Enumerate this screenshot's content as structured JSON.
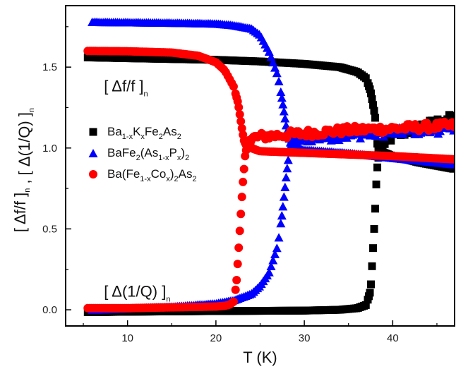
{
  "chart_data": {
    "type": "scatter",
    "title": "",
    "xlabel": "T (K)",
    "ylabel": "[ Δf/f ]n , [ Δ(1/Q) ]n",
    "xlim": [
      3,
      47
    ],
    "ylim": [
      -0.1,
      1.88
    ],
    "x_ticks": [
      10,
      20,
      30,
      40
    ],
    "y_ticks": [
      0.0,
      0.5,
      1.0,
      1.5
    ],
    "grid": false,
    "legend_position": "center-left",
    "annotations": [
      {
        "id": "df",
        "main": "[ Δf/f ]",
        "sub": "n",
        "x": 4.3,
        "y": 1.35
      },
      {
        "id": "dq",
        "main": "[ Δ(1/Q) ]",
        "sub": "n",
        "x": 4.3,
        "y": 0.08
      }
    ],
    "series": [
      {
        "key": "bak",
        "legend_parts": [
          [
            "Ba",
            ""
          ],
          [
            "1-x",
            "sub"
          ],
          [
            "K",
            ""
          ],
          [
            "x",
            "sub"
          ],
          [
            "Fe",
            ""
          ],
          [
            "2",
            "sub"
          ],
          [
            "As",
            ""
          ],
          [
            "2",
            "sub"
          ]
        ],
        "marker": "square",
        "color": "#000000",
        "Tc": 38.3,
        "freq": {
          "x": [
            5.5,
            10,
            15,
            20,
            25,
            30,
            34,
            36,
            37,
            37.5,
            38.0,
            38.3,
            38.6,
            39.0,
            40,
            43,
            47
          ],
          "y": [
            1.56,
            1.555,
            1.55,
            1.545,
            1.535,
            1.52,
            1.5,
            1.47,
            1.43,
            1.35,
            1.2,
            1.0,
            0.98,
            0.97,
            0.95,
            0.91,
            0.87
          ]
        },
        "diss": {
          "x": [
            5.5,
            10,
            20,
            30,
            34,
            36,
            37,
            37.5,
            37.8,
            38.0,
            38.2,
            38.4,
            38.7,
            39.0,
            40,
            43,
            47
          ],
          "y": [
            -0.015,
            -0.012,
            -0.008,
            -0.005,
            0.0,
            0.01,
            0.03,
            0.12,
            0.4,
            0.6,
            0.85,
            0.95,
            1.0,
            1.03,
            1.07,
            1.13,
            1.19
          ]
        }
      },
      {
        "key": "bap",
        "legend_parts": [
          [
            "BaFe",
            ""
          ],
          [
            "2",
            "sub"
          ],
          [
            "(As",
            ""
          ],
          [
            "1-x",
            "sub"
          ],
          [
            "P",
            ""
          ],
          [
            "x",
            "sub"
          ],
          [
            ")",
            ""
          ],
          [
            "2",
            "sub"
          ]
        ],
        "marker": "triangle",
        "color": "#0000ff",
        "Tc": 28.5,
        "freq": {
          "x": [
            6,
            10,
            15,
            20,
            22,
            24,
            25,
            26,
            27,
            27.5,
            28,
            28.5,
            29,
            30,
            35,
            40,
            47
          ],
          "y": [
            1.78,
            1.778,
            1.775,
            1.77,
            1.76,
            1.74,
            1.7,
            1.6,
            1.45,
            1.3,
            1.12,
            1.02,
            1.0,
            0.99,
            0.97,
            0.94,
            0.9
          ]
        },
        "diss": {
          "x": [
            6,
            10,
            15,
            20,
            22,
            24,
            25,
            26,
            27,
            27.5,
            28,
            28.3,
            28.6,
            29,
            30,
            35,
            40,
            47
          ],
          "y": [
            0.0,
            0.01,
            0.02,
            0.04,
            0.06,
            0.1,
            0.15,
            0.23,
            0.4,
            0.6,
            0.85,
            0.98,
            1.04,
            1.05,
            1.06,
            1.08,
            1.1,
            1.12
          ]
        }
      },
      {
        "key": "baco",
        "legend_parts": [
          [
            "Ba(Fe",
            ""
          ],
          [
            "1-x",
            "sub"
          ],
          [
            "Co",
            ""
          ],
          [
            "x",
            "sub"
          ],
          [
            ")",
            ""
          ],
          [
            "2",
            "sub"
          ],
          [
            "As",
            ""
          ],
          [
            "2",
            "sub"
          ]
        ],
        "marker": "circle",
        "color": "#ff0000",
        "Tc": 23.2,
        "freq": {
          "x": [
            5.5,
            10,
            15,
            18,
            20,
            21,
            22,
            22.5,
            23,
            23.2,
            23.5,
            24,
            25,
            30,
            35,
            40,
            47
          ],
          "y": [
            1.6,
            1.598,
            1.59,
            1.57,
            1.53,
            1.48,
            1.38,
            1.28,
            1.1,
            1.04,
            1.01,
            1.0,
            0.98,
            0.97,
            0.96,
            0.95,
            0.93
          ]
        },
        "diss": {
          "x": [
            5.5,
            10,
            15,
            20,
            21,
            21.5,
            22,
            22.3,
            22.6,
            23,
            23.3,
            23.6,
            24,
            25,
            30,
            35,
            40,
            47
          ],
          "y": [
            0.01,
            0.01,
            0.015,
            0.02,
            0.025,
            0.03,
            0.05,
            0.15,
            0.4,
            0.75,
            0.95,
            1.04,
            1.06,
            1.07,
            1.09,
            1.11,
            1.12,
            1.14
          ]
        }
      }
    ]
  }
}
